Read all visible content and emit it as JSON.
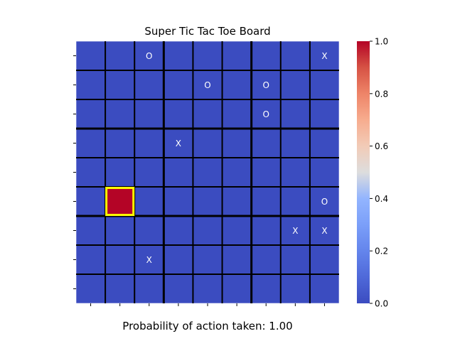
{
  "title": "Super Tic Tac Toe Board",
  "caption": "Probability of action taken: 1.00",
  "board": {
    "rows": 9,
    "cols": 9,
    "marks": [
      [
        "",
        "",
        "O",
        "",
        "",
        "",
        "",
        "",
        "X"
      ],
      [
        "",
        "",
        "",
        "",
        "O",
        "",
        "O",
        "",
        ""
      ],
      [
        "",
        "",
        "",
        "",
        "",
        "",
        "O",
        "",
        ""
      ],
      [
        "",
        "",
        "",
        "X",
        "",
        "",
        "",
        "",
        ""
      ],
      [
        "",
        "",
        "",
        "",
        "",
        "",
        "",
        "",
        ""
      ],
      [
        "",
        "",
        "",
        "",
        "",
        "",
        "",
        "",
        "O"
      ],
      [
        "",
        "",
        "",
        "",
        "",
        "",
        "",
        "X",
        "X"
      ],
      [
        "",
        "",
        "X",
        "",
        "",
        "",
        "",
        "",
        ""
      ],
      [
        "",
        "",
        "",
        "",
        "",
        "",
        "",
        "",
        ""
      ]
    ],
    "probabilities": [
      [
        0,
        0,
        0,
        0,
        0,
        0,
        0,
        0,
        0
      ],
      [
        0,
        0,
        0,
        0,
        0,
        0,
        0,
        0,
        0
      ],
      [
        0,
        0,
        0,
        0,
        0,
        0,
        0,
        0,
        0
      ],
      [
        0,
        0,
        0,
        0,
        0,
        0,
        0,
        0,
        0
      ],
      [
        0,
        0,
        0,
        0,
        0,
        0,
        0,
        0,
        0
      ],
      [
        0,
        1,
        0,
        0,
        0,
        0,
        0,
        0,
        0
      ],
      [
        0,
        0,
        0,
        0,
        0,
        0,
        0,
        0,
        0
      ],
      [
        0,
        0,
        0,
        0,
        0,
        0,
        0,
        0,
        0
      ],
      [
        0,
        0,
        0,
        0,
        0,
        0,
        0,
        0,
        0
      ]
    ],
    "highlighted_cell": {
      "row": 5,
      "col": 1
    },
    "highlight_color": "#ffff00",
    "low_color": "#3b4cc0",
    "high_color": "#b40426"
  },
  "colorbar": {
    "min": 0.0,
    "max": 1.0,
    "ticks": [
      "0.0",
      "0.2",
      "0.4",
      "0.6",
      "0.8",
      "1.0"
    ],
    "colormap": "coolwarm"
  }
}
